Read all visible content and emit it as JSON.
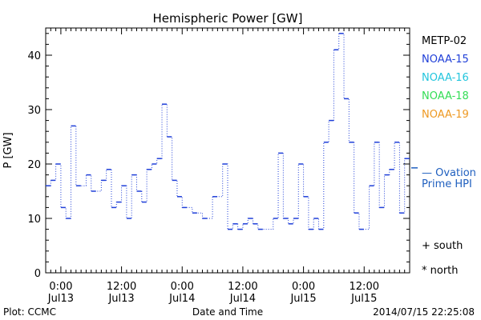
{
  "chart_data": {
    "type": "line",
    "title": "Hemispheric Power [GW]",
    "ylabel": "P [GW]",
    "xlabel": "Date and Time",
    "ylim": [
      0,
      45
    ],
    "yticks": [
      0,
      10,
      20,
      30,
      40
    ],
    "xlim": [
      -6,
      138
    ],
    "xticks": [
      {
        "x": 0,
        "lines": [
          "0:00",
          "Jul13"
        ]
      },
      {
        "x": 24,
        "lines": [
          "12:00",
          "Jul13"
        ]
      },
      {
        "x": 48,
        "lines": [
          "0:00",
          "Jul14"
        ]
      },
      {
        "x": 72,
        "lines": [
          "12:00",
          "Jul14"
        ]
      },
      {
        "x": 96,
        "lines": [
          "0:00",
          "Jul15"
        ]
      },
      {
        "x": 120,
        "lines": [
          "12:00",
          "Jul15"
        ]
      }
    ],
    "x_units": "half-hours since 2014-07-13 00:00",
    "legend": [
      {
        "name": "METP-02",
        "color": "#000000"
      },
      {
        "name": "NOAA-15",
        "color": "#1f3fd8"
      },
      {
        "name": "NOAA-16",
        "color": "#22c5dd"
      },
      {
        "name": "NOAA-18",
        "color": "#33dd55"
      },
      {
        "name": "NOAA-19",
        "color": "#ee9922"
      }
    ],
    "ovation": {
      "label_line1": "— Ovation",
      "label_line2": "Prime HPI",
      "value": 18.7,
      "color": "#1f5fbf"
    },
    "symbols": [
      {
        "glyph": "+",
        "label": "south"
      },
      {
        "glyph": "*",
        "label": "north"
      }
    ],
    "series": [
      {
        "name": "NOAA-15",
        "color": "#1f3fd8",
        "points": [
          [
            -6,
            16
          ],
          [
            -4,
            17
          ],
          [
            -2,
            20
          ],
          [
            0,
            12
          ],
          [
            2,
            10
          ],
          [
            4,
            27
          ],
          [
            6,
            16
          ],
          [
            10,
            18
          ],
          [
            12,
            15
          ],
          [
            16,
            17
          ],
          [
            18,
            19
          ],
          [
            20,
            12
          ],
          [
            22,
            13
          ],
          [
            24,
            16
          ],
          [
            26,
            10
          ],
          [
            28,
            18
          ],
          [
            30,
            15
          ],
          [
            32,
            13
          ],
          [
            34,
            19
          ],
          [
            36,
            20
          ],
          [
            38,
            21
          ],
          [
            40,
            31
          ],
          [
            42,
            25
          ],
          [
            44,
            17
          ],
          [
            46,
            14
          ],
          [
            48,
            12
          ],
          [
            52,
            11
          ],
          [
            56,
            10
          ],
          [
            60,
            14
          ],
          [
            64,
            20
          ],
          [
            66,
            8
          ],
          [
            68,
            9
          ],
          [
            70,
            8
          ],
          [
            72,
            9
          ],
          [
            74,
            10
          ],
          [
            76,
            9
          ],
          [
            78,
            8
          ],
          [
            84,
            10
          ],
          [
            86,
            22
          ],
          [
            88,
            10
          ],
          [
            90,
            9
          ],
          [
            92,
            10
          ],
          [
            94,
            20
          ],
          [
            96,
            14
          ],
          [
            98,
            8
          ],
          [
            100,
            10
          ],
          [
            102,
            8
          ],
          [
            104,
            24
          ],
          [
            106,
            28
          ],
          [
            108,
            41
          ],
          [
            110,
            44
          ],
          [
            112,
            32
          ],
          [
            114,
            24
          ],
          [
            116,
            11
          ],
          [
            118,
            8
          ],
          [
            122,
            16
          ],
          [
            124,
            24
          ],
          [
            126,
            12
          ],
          [
            128,
            18
          ],
          [
            130,
            19
          ],
          [
            132,
            24
          ],
          [
            134,
            11
          ],
          [
            136,
            21
          ],
          [
            138,
            21
          ]
        ]
      }
    ]
  },
  "footer": {
    "left": "Plot: CCMC",
    "right": "2014/07/15 22:25:08"
  }
}
